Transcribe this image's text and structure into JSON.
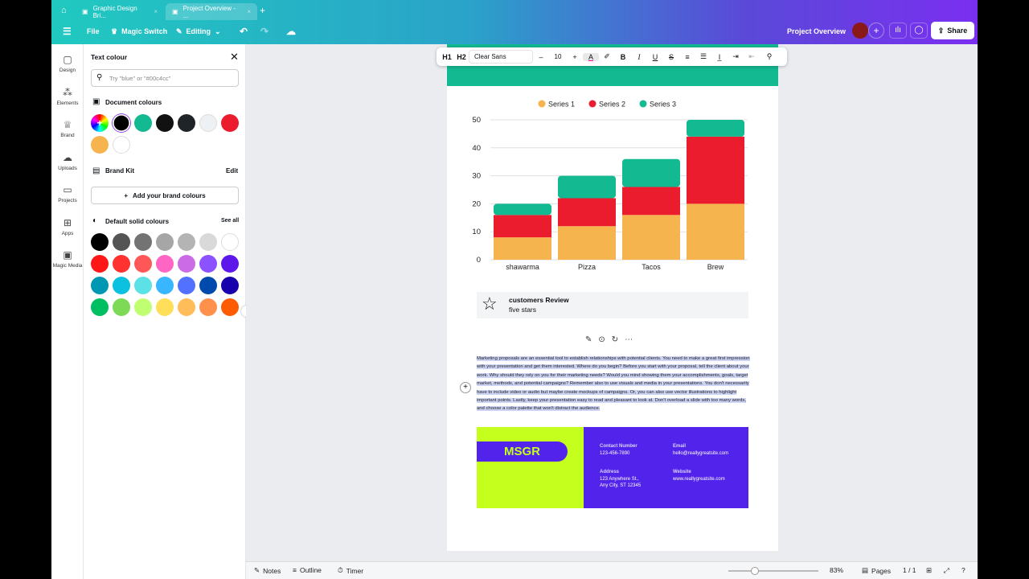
{
  "tabs": [
    {
      "label": "Graphic Design Bri...",
      "active": false
    },
    {
      "label": "Project Overview - ...",
      "active": true
    }
  ],
  "toolbar": {
    "file": "File",
    "magic_switch": "Magic Switch",
    "editing": "Editing",
    "doc_title": "Project Overview",
    "share": "Share"
  },
  "rail": [
    {
      "label": "Design",
      "icon": "design-icon"
    },
    {
      "label": "Elements",
      "icon": "elements-icon"
    },
    {
      "label": "Brand",
      "icon": "brand-icon"
    },
    {
      "label": "Uploads",
      "icon": "uploads-icon"
    },
    {
      "label": "Projects",
      "icon": "folder-icon"
    },
    {
      "label": "Apps",
      "icon": "apps-icon"
    },
    {
      "label": "Magic Media",
      "icon": "magic-media-icon"
    }
  ],
  "panel": {
    "title": "Text colour",
    "search_placeholder": "Try \"blue\" or \"#00c4cc\"",
    "document_colours": "Document colours",
    "doc_colors": [
      "#000000",
      "#13b991",
      "#111111",
      "#1f2428",
      "#eef1f4",
      "#eb1c2d",
      "#f6b44e",
      "#ffffff"
    ],
    "brand_kit": "Brand Kit",
    "edit": "Edit",
    "add_brand": "Add your brand colours",
    "default_colours": "Default solid colours",
    "see_all": "See all",
    "default_colors": [
      "#000000",
      "#545454",
      "#737373",
      "#a6a6a6",
      "#b4b4b4",
      "#d9d9d9",
      "#ffffff",
      "#ff1616",
      "#ff3131",
      "#ff5757",
      "#ff66c4",
      "#cb6ce6",
      "#8c52ff",
      "#5e17eb",
      "#0097b2",
      "#0cc0df",
      "#5ce1e6",
      "#38b6ff",
      "#5271ff",
      "#004aad",
      "#1800ad",
      "#00bf63",
      "#7ed957",
      "#c1ff72",
      "#ffde59",
      "#ffbd59",
      "#ff914d",
      "#ff5c00"
    ]
  },
  "format_bar": {
    "h1": "H1",
    "h2": "H2",
    "font": "Clear Sans",
    "size": "10"
  },
  "chart_data": {
    "type": "bar",
    "stacked": true,
    "categories": [
      "shawarma",
      "Pizza",
      "Tacos",
      "Brew"
    ],
    "series": [
      {
        "name": "Series 1",
        "color": "#f6b44e",
        "values": [
          8,
          12,
          16,
          20
        ]
      },
      {
        "name": "Series 2",
        "color": "#eb1c2d",
        "values": [
          8,
          10,
          10,
          24
        ]
      },
      {
        "name": "Series 3",
        "color": "#13b991",
        "values": [
          4,
          8,
          10,
          6
        ]
      }
    ],
    "ylim": [
      0,
      50
    ],
    "yticks": [
      0,
      10,
      20,
      30,
      40,
      50
    ],
    "grid": true,
    "legend": "top"
  },
  "review": {
    "title": "customers Review",
    "subtitle": "five stars"
  },
  "body_text": "Marketing proposals are an essential tool to establish relationships with potential clients. You need to make a great first impression with your presentation and get them interested. Where do you begin? Before you start with your proposal, tell the client about your work. Why should they rely on you for their marketing needs? Would you mind showing them your accomplishments, goals, target market, methods, and potential campaigns? Remember also to use visuals and media in your presentations. You don't necessarily have to include video or audio but maybe create mockups of campaigns. Or, you can also use vector illustrations to highlight important points. Lastly, keep your presentation easy to read and pleasant to look at. Don't overload a slide with too many words, and choose a color palette that won't distract the audience.",
  "contact": {
    "brand": "MSGR",
    "contact_label": "Contact Number",
    "contact": "123-456-7890",
    "email_label": "Email",
    "email": "hello@reallygreatsite.com",
    "address_label": "Address",
    "address1": "123 Anywhere St.,",
    "address2": "Any City, ST 12345",
    "website_label": "Website",
    "website": "www.reallygreatsite.com"
  },
  "bottom": {
    "notes": "Notes",
    "outline": "Outline",
    "timer": "Timer",
    "zoom": "83%",
    "zoom_value": 83,
    "pages": "Pages",
    "page_count": "1 / 1"
  }
}
